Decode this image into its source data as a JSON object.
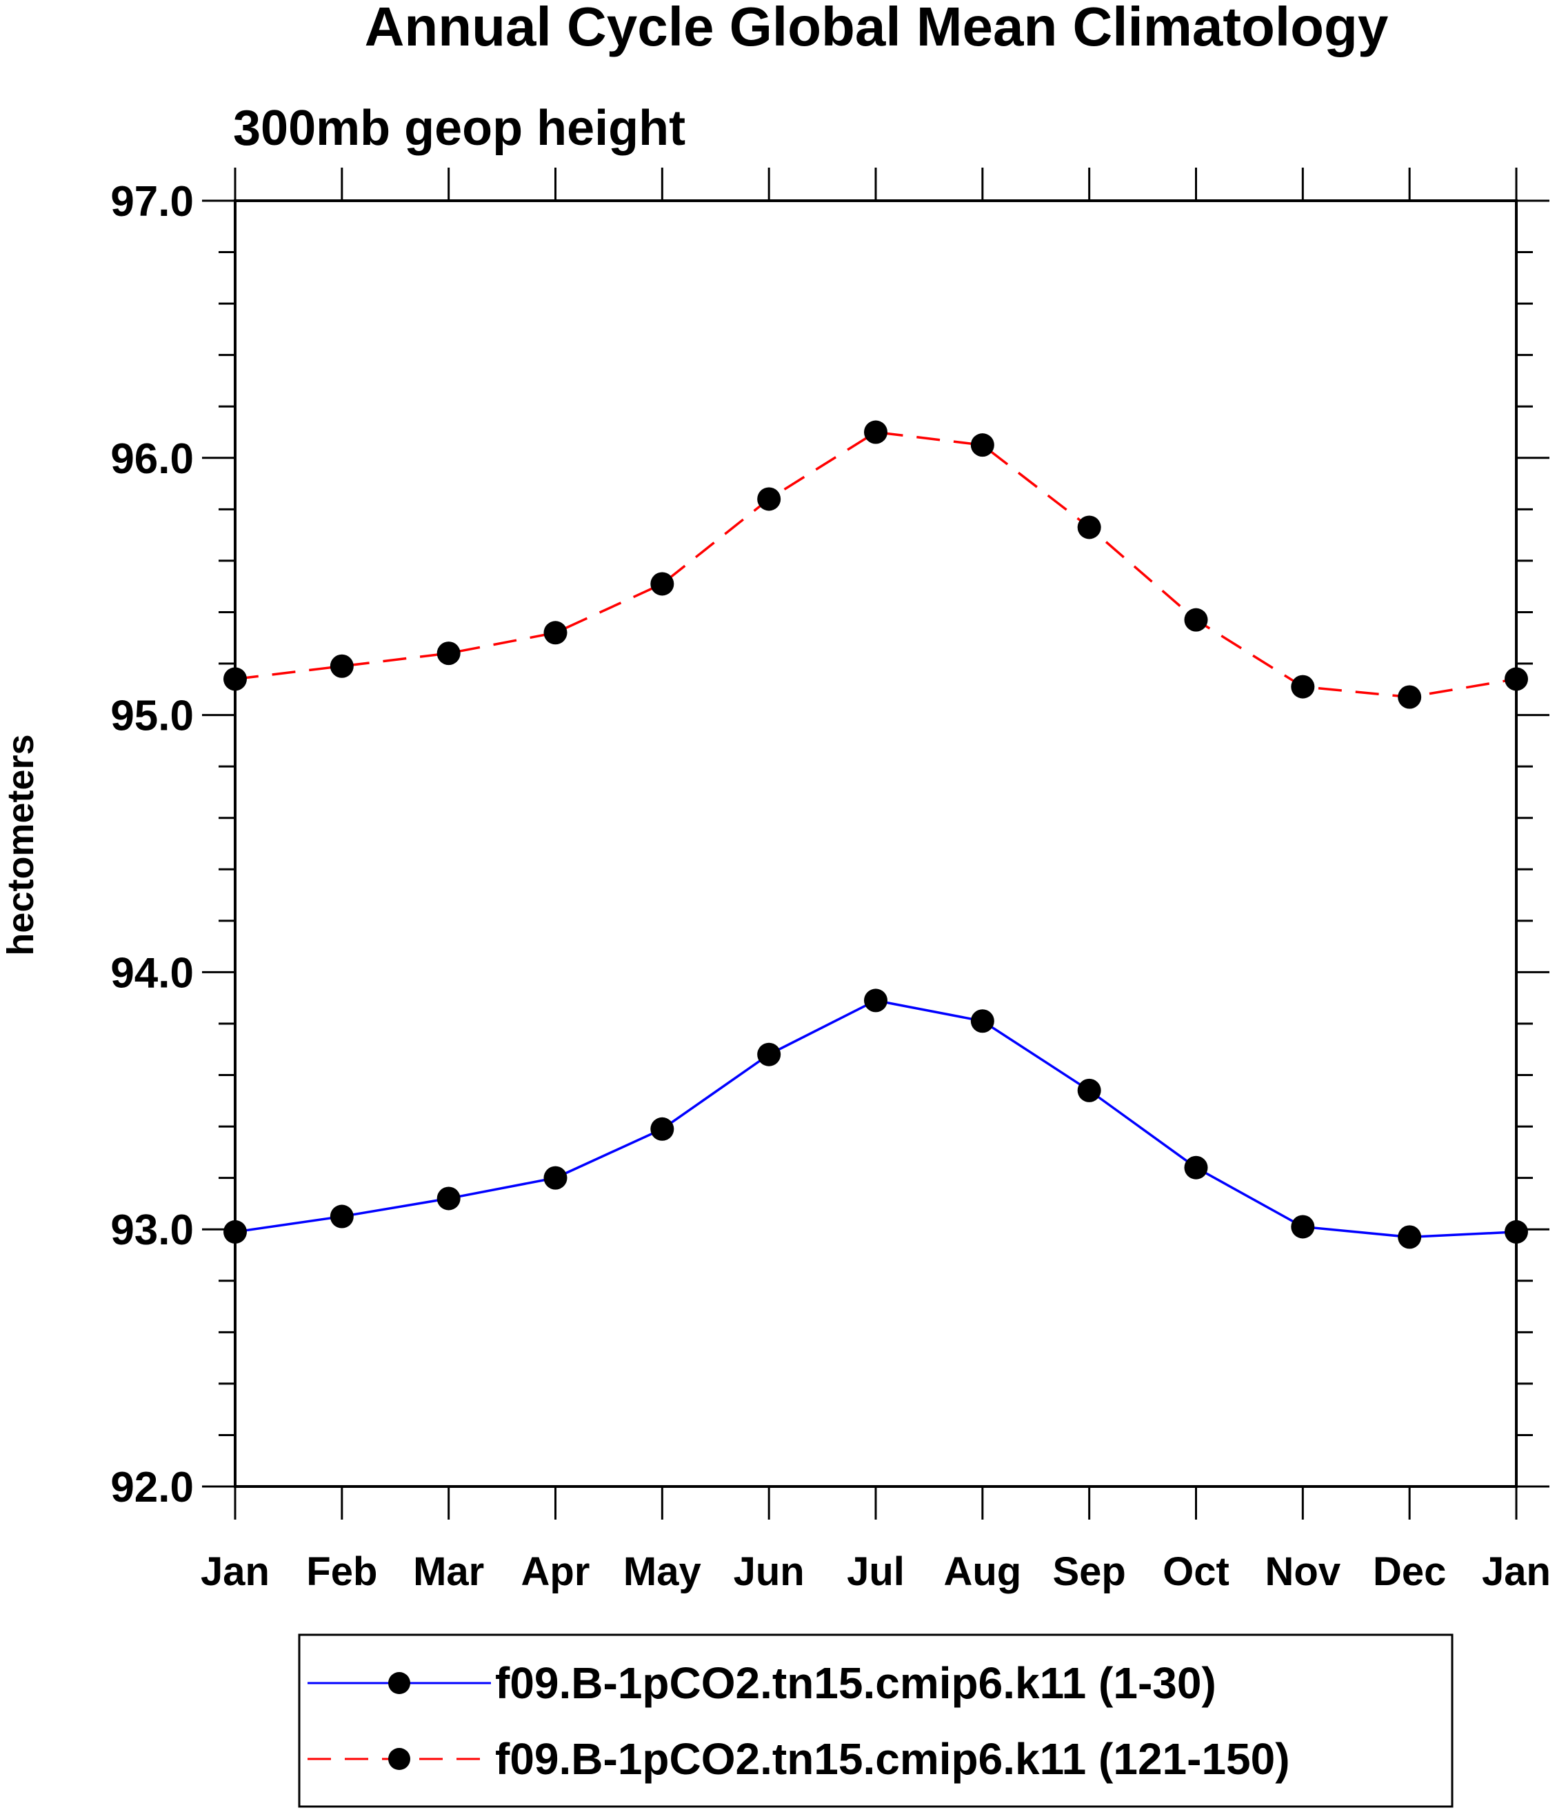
{
  "chart_data": {
    "type": "line",
    "title": "Annual Cycle Global Mean Climatology",
    "subtitle": "300mb geop height",
    "xlabel": "",
    "ylabel": "hectometers",
    "categories": [
      "Jan",
      "Feb",
      "Mar",
      "Apr",
      "May",
      "Jun",
      "Jul",
      "Aug",
      "Sep",
      "Oct",
      "Nov",
      "Dec",
      "Jan"
    ],
    "ylim": [
      92.0,
      97.0
    ],
    "yticks": [
      "92.0",
      "93.0",
      "94.0",
      "95.0",
      "96.0",
      "97.0"
    ],
    "grid": false,
    "legend_position": "bottom",
    "series": [
      {
        "name": "f09.B-1pCO2.tn15.cmip6.k11 (1-30)",
        "color": "#0000ff",
        "line_style": "solid",
        "marker": "filled-circle",
        "values": [
          92.99,
          93.05,
          93.12,
          93.2,
          93.39,
          93.68,
          93.89,
          93.81,
          93.54,
          93.24,
          93.01,
          92.97,
          92.99
        ]
      },
      {
        "name": "f09.B-1pCO2.tn15.cmip6.k11 (121-150)",
        "color": "#ff0000",
        "line_style": "dashed",
        "marker": "filled-circle",
        "values": [
          95.14,
          95.19,
          95.24,
          95.32,
          95.51,
          95.84,
          96.1,
          96.05,
          95.73,
          95.37,
          95.11,
          95.07,
          95.14
        ]
      }
    ]
  }
}
